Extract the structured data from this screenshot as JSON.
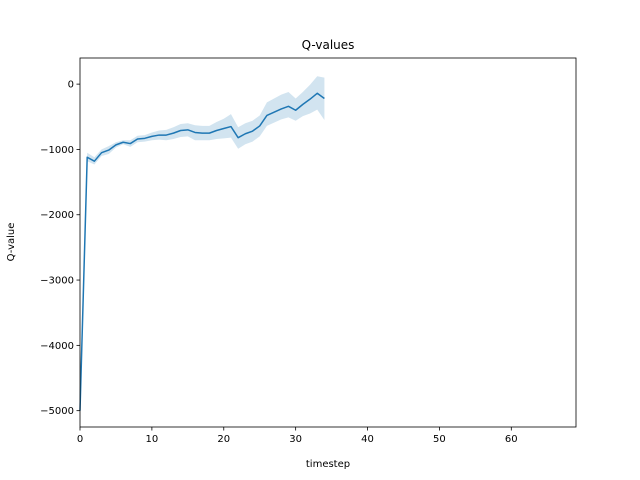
{
  "chart_data": {
    "type": "line",
    "title": "Q-values",
    "xlabel": "timestep",
    "ylabel": "Q-value",
    "xlim": [
      0,
      69
    ],
    "ylim": [
      -5250,
      400
    ],
    "xticks": [
      0,
      10,
      20,
      30,
      40,
      50,
      60
    ],
    "yticks": [
      -5000,
      -4000,
      -3000,
      -2000,
      -1000,
      0
    ],
    "grid": false,
    "line_color": "#1f77b4",
    "band_color": "#1f77b4",
    "series": [
      {
        "x": [
          0,
          1,
          2,
          3,
          4,
          5,
          6,
          7,
          8,
          9,
          10,
          11,
          12,
          13,
          14,
          15,
          16,
          17,
          18,
          19,
          20,
          21,
          22,
          23,
          24,
          25,
          26,
          27,
          28,
          29,
          30,
          31,
          32,
          33,
          34
        ],
        "mean": [
          -5000,
          -1120,
          -1180,
          -1050,
          -1010,
          -930,
          -890,
          -910,
          -840,
          -830,
          -800,
          -780,
          -780,
          -750,
          -710,
          -700,
          -740,
          -750,
          -750,
          -710,
          -680,
          -650,
          -820,
          -760,
          -720,
          -640,
          -480,
          -430,
          -380,
          -340,
          -400,
          -310,
          -230,
          -140,
          -220
        ],
        "lower": [
          -5000,
          -1180,
          -1230,
          -1100,
          -1070,
          -970,
          -920,
          -960,
          -890,
          -880,
          -860,
          -850,
          -860,
          -840,
          -810,
          -800,
          -860,
          -860,
          -860,
          -840,
          -830,
          -820,
          -990,
          -920,
          -880,
          -800,
          -640,
          -590,
          -540,
          -510,
          -560,
          -490,
          -450,
          -390,
          -550
        ],
        "upper": [
          -5000,
          -1050,
          -1120,
          -1000,
          -950,
          -890,
          -860,
          -860,
          -790,
          -780,
          -740,
          -710,
          -700,
          -660,
          -610,
          -600,
          -630,
          -640,
          -640,
          -580,
          -530,
          -460,
          -660,
          -600,
          -560,
          -480,
          -280,
          -220,
          -160,
          -120,
          -220,
          -120,
          -10,
          120,
          100
        ]
      }
    ]
  }
}
